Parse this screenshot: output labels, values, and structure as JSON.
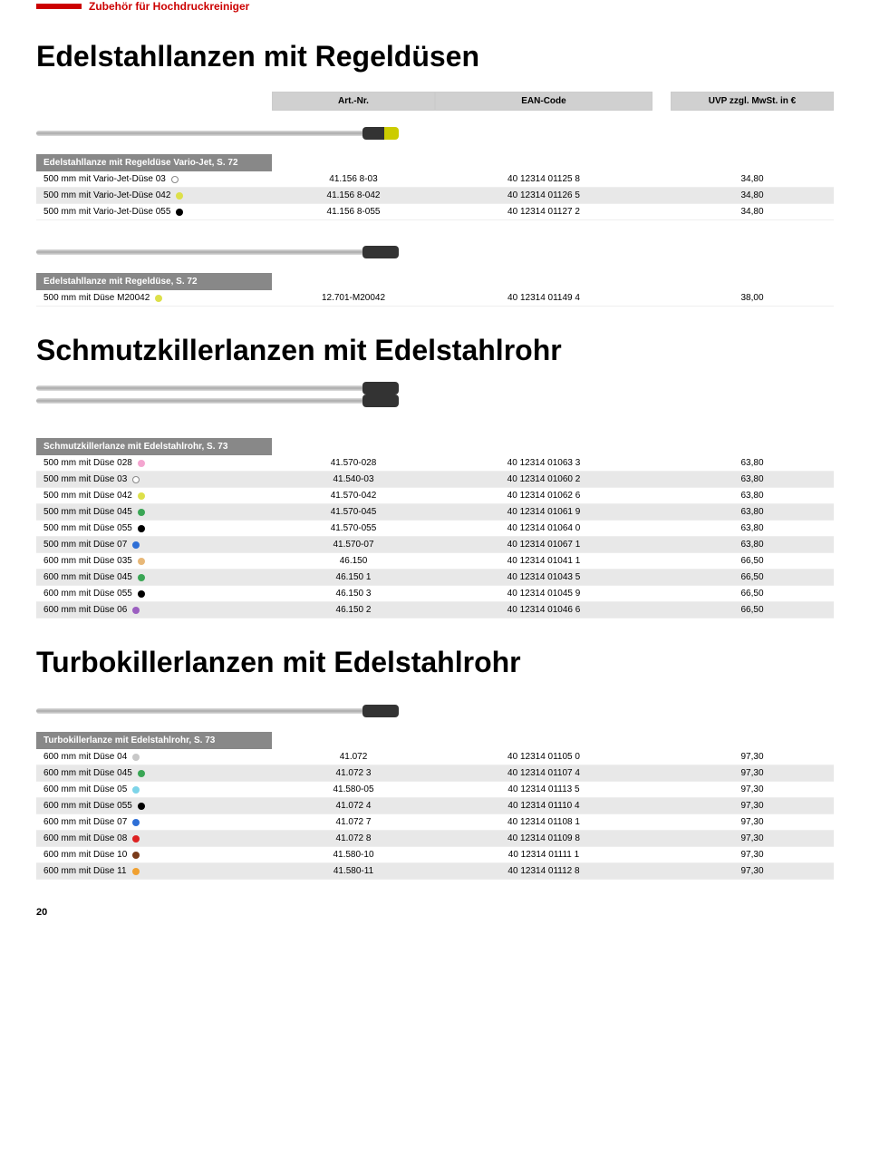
{
  "header": {
    "category": "Zubehör für Hochdruckreiniger"
  },
  "colHeaders": {
    "art": "Art.-Nr.",
    "ean": "EAN-Code",
    "price": "UVP zzgl. MwSt. in €"
  },
  "pageNum": "20",
  "sections": [
    {
      "title": "Edelstahllanzen mit Regeldüsen",
      "showColumnHeaders": true,
      "lanceStyle": "yellow",
      "groups": [
        {
          "header": "Edelstahllanze mit Regeldüse Vario-Jet, S. 72",
          "rows": [
            {
              "name": "500 mm mit Vario-Jet-Düse 03",
              "dot": "#fff",
              "dotBorder": "#888",
              "art": "41.156 8-03",
              "ean": "40 12314 01125 8",
              "price": "34,80",
              "alt": false
            },
            {
              "name": "500 mm mit Vario-Jet-Düse 042",
              "dot": "#dde04a",
              "art": "41.156 8-042",
              "ean": "40 12314 01126 5",
              "price": "34,80",
              "alt": true
            },
            {
              "name": "500 mm mit Vario-Jet-Düse 055",
              "dot": "#000",
              "art": "41.156 8-055",
              "ean": "40 12314 01127 2",
              "price": "34,80",
              "alt": false
            }
          ]
        },
        {
          "header": "Edelstahllanze mit Regeldüse, S. 72",
          "spaceBefore": true,
          "lanceStyle": "dark",
          "rows": [
            {
              "name": "500 mm mit Düse M20042",
              "dot": "#dde04a",
              "art": "12.701-M20042",
              "ean": "40 12314 01149 4",
              "price": "38,00",
              "alt": false
            }
          ]
        }
      ]
    },
    {
      "title": "Schmutzkillerlanzen mit Edelstahlrohr",
      "lanceStyle": "double",
      "groups": [
        {
          "header": "Schmutzkillerlanze mit Edelstahlrohr, S. 73",
          "rows": [
            {
              "name": "500 mm mit Düse 028",
              "dot": "#f4a6d0",
              "art": "41.570-028",
              "ean": "40 12314 01063 3",
              "price": "63,80",
              "alt": false
            },
            {
              "name": "500 mm mit Düse 03",
              "dot": "#fff",
              "dotBorder": "#888",
              "art": "41.540-03",
              "ean": "40 12314 01060 2",
              "price": "63,80",
              "alt": true
            },
            {
              "name": "500 mm mit Düse 042",
              "dot": "#dde04a",
              "art": "41.570-042",
              "ean": "40 12314 01062 6",
              "price": "63,80",
              "alt": false
            },
            {
              "name": "500 mm mit Düse 045",
              "dot": "#3aa655",
              "art": "41.570-045",
              "ean": "40 12314 01061 9",
              "price": "63,80",
              "alt": true
            },
            {
              "name": "500 mm mit Düse 055",
              "dot": "#000",
              "art": "41.570-055",
              "ean": "40 12314 01064 0",
              "price": "63,80",
              "alt": false
            },
            {
              "name": "500 mm mit Düse 07",
              "dot": "#2e6fd6",
              "art": "41.570-07",
              "ean": "40 12314 01067 1",
              "price": "63,80",
              "alt": true
            },
            {
              "name": "600 mm mit Düse 035",
              "dot": "#e8b878",
              "art": "46.150",
              "ean": "40 12314 01041 1",
              "price": "66,50",
              "alt": false
            },
            {
              "name": "600 mm mit Düse 045",
              "dot": "#3aa655",
              "art": "46.150 1",
              "ean": "40 12314 01043 5",
              "price": "66,50",
              "alt": true
            },
            {
              "name": "600 mm mit Düse 055",
              "dot": "#000",
              "art": "46.150 3",
              "ean": "40 12314 01045 9",
              "price": "66,50",
              "alt": false
            },
            {
              "name": "600 mm mit Düse 06",
              "dot": "#9b5fc0",
              "art": "46.150 2",
              "ean": "40 12314 01046 6",
              "price": "66,50",
              "alt": true
            }
          ]
        }
      ]
    },
    {
      "title": "Turbokillerlanzen mit Edelstahlrohr",
      "lanceStyle": "dark",
      "groups": [
        {
          "header": "Turbokillerlanze mit Edelstahlrohr, S. 73",
          "rows": [
            {
              "name": "600 mm mit Düse 04",
              "dot": "#c8c8c8",
              "art": "41.072",
              "ean": "40 12314 01105 0",
              "price": "97,30",
              "alt": false
            },
            {
              "name": "600 mm mit Düse 045",
              "dot": "#3aa655",
              "art": "41.072 3",
              "ean": "40 12314 01107 4",
              "price": "97,30",
              "alt": true
            },
            {
              "name": "600 mm mit Düse 05",
              "dot": "#7dd4e8",
              "art": "41.580-05",
              "ean": "40 12314 01113 5",
              "price": "97,30",
              "alt": false
            },
            {
              "name": "600 mm mit Düse 055",
              "dot": "#000",
              "art": "41.072 4",
              "ean": "40 12314 01110 4",
              "price": "97,30",
              "alt": true
            },
            {
              "name": "600 mm mit Düse 07",
              "dot": "#2e6fd6",
              "art": "41.072 7",
              "ean": "40 12314 01108 1",
              "price": "97,30",
              "alt": false
            },
            {
              "name": "600 mm mit Düse 08",
              "dot": "#d22",
              "art": "41.072 8",
              "ean": "40 12314 01109 8",
              "price": "97,30",
              "alt": true
            },
            {
              "name": "600 mm mit Düse 10",
              "dot": "#7a3b1a",
              "art": "41.580-10",
              "ean": "40 12314 01111 1",
              "price": "97,30",
              "alt": false
            },
            {
              "name": "600 mm mit Düse 11",
              "dot": "#f0a030",
              "art": "41.580-11",
              "ean": "40 12314 01112 8",
              "price": "97,30",
              "alt": true
            }
          ]
        }
      ]
    }
  ]
}
